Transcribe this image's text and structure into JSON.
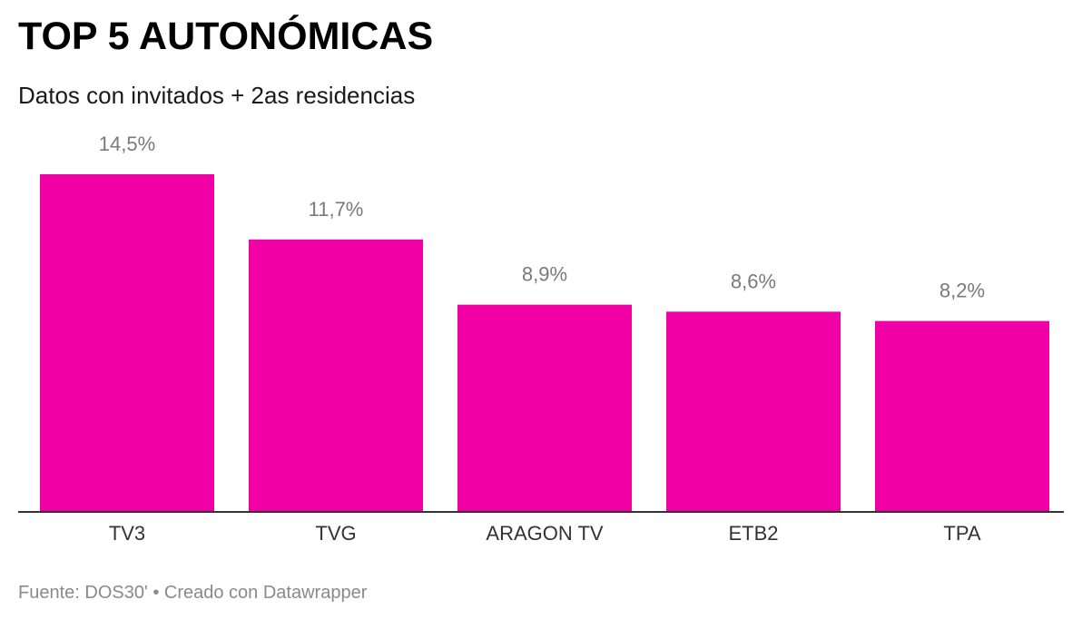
{
  "header": {
    "title": "TOP 5 AUTONÓMICAS",
    "subtitle": "Datos con invitados + 2as residencias"
  },
  "chart_data": {
    "type": "bar",
    "categories": [
      "TV3",
      "TVG",
      "ARAGON TV",
      "ETB2",
      "TPA"
    ],
    "values": [
      14.5,
      11.7,
      8.9,
      8.6,
      8.2
    ],
    "data_labels": [
      "14,5%",
      "11,7%",
      "8,9%",
      "8,6%",
      "8,2%"
    ],
    "title": "TOP 5 AUTONÓMICAS",
    "subtitle": "Datos con invitados + 2as residencias",
    "xlabel": "",
    "ylabel": "",
    "ylim": [
      0,
      14.5
    ],
    "grid": false,
    "legend": "none",
    "bar_color": "#f000a5",
    "label_color": "#7a7a7a",
    "axis_color": "#333333"
  },
  "footer": {
    "source": "Fuente: DOS30' • Creado con Datawrapper"
  }
}
